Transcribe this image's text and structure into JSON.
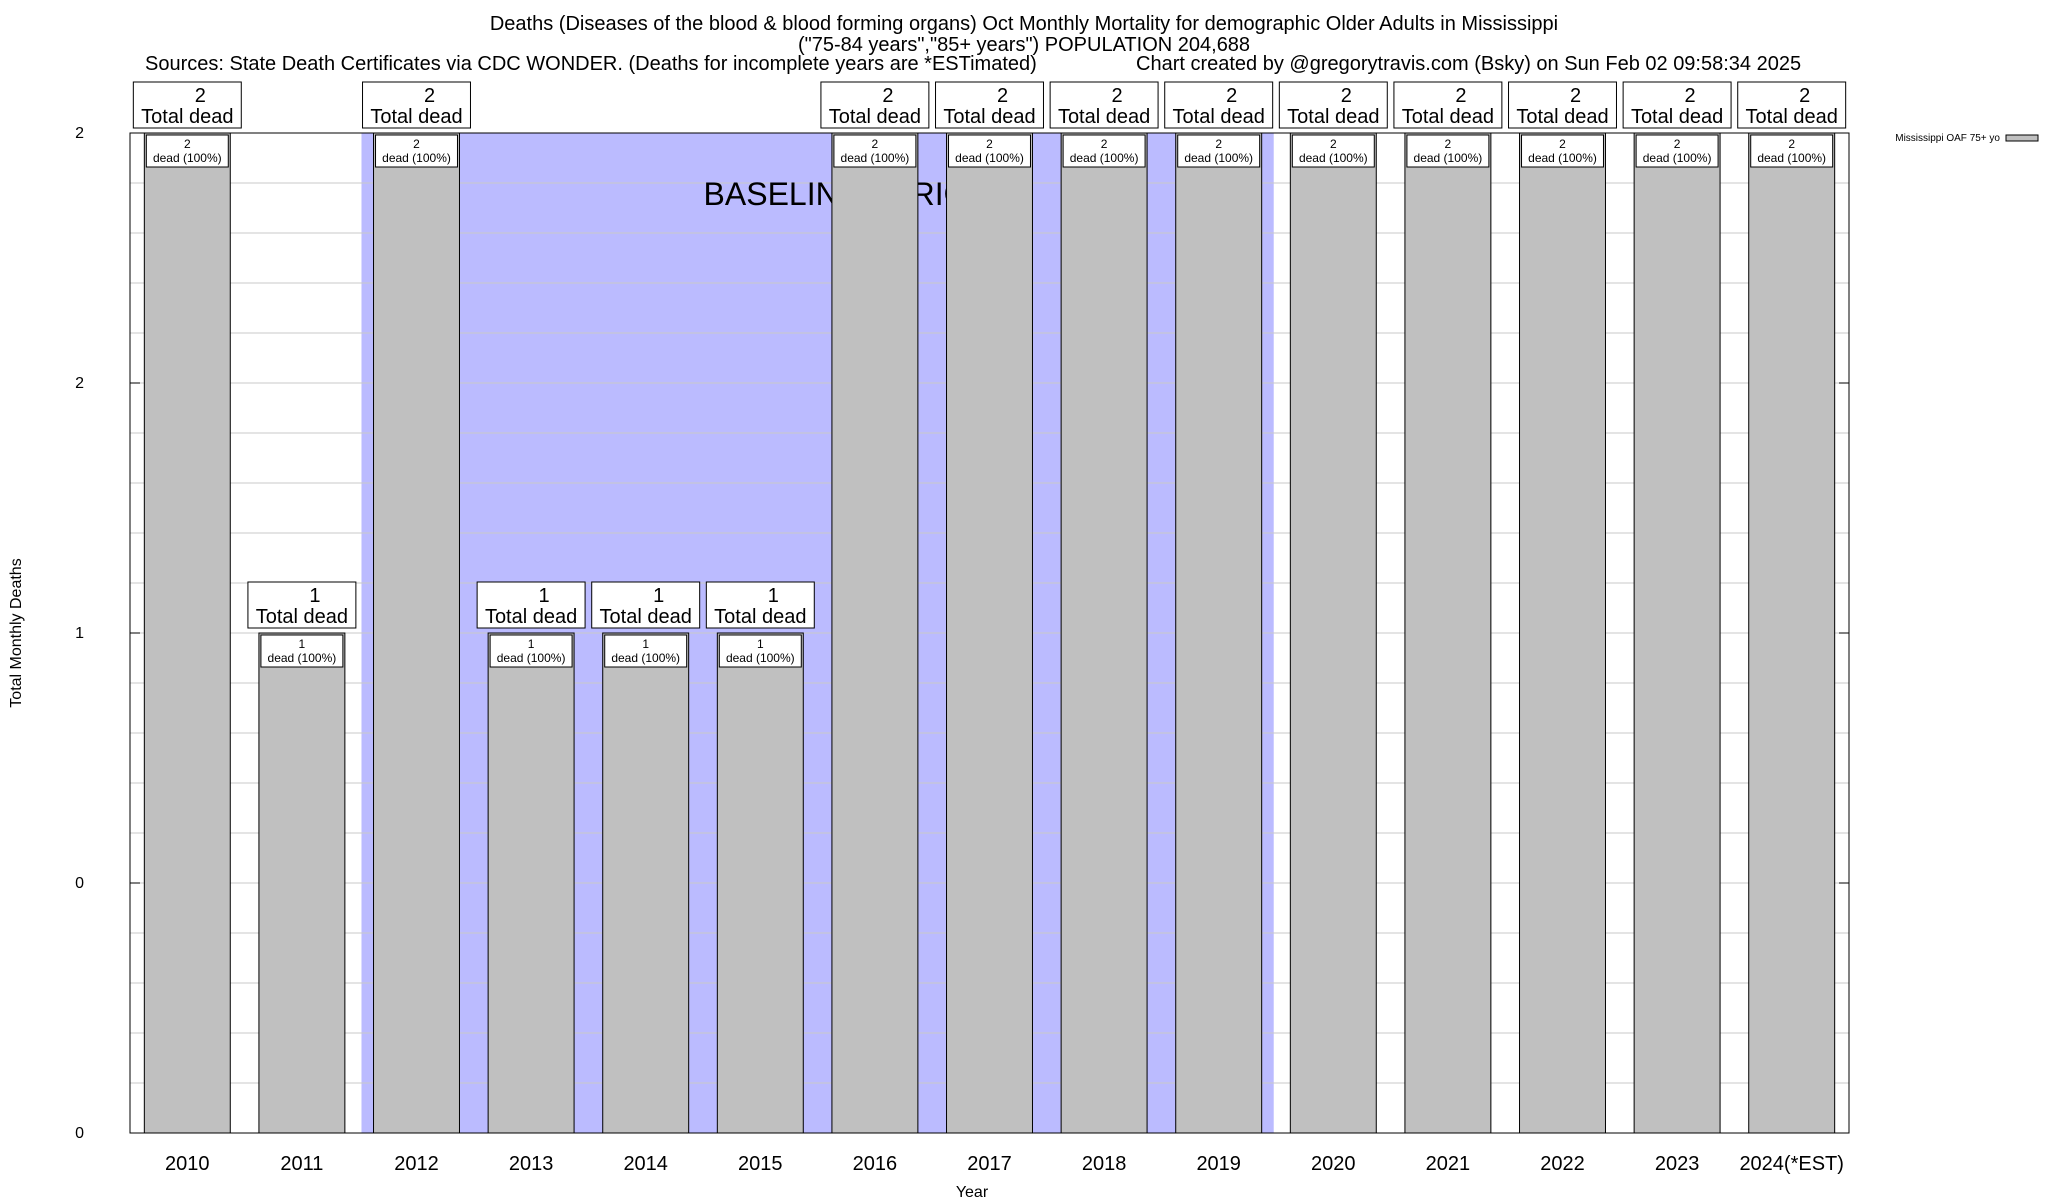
{
  "chart_data": {
    "type": "bar",
    "title": "Deaths (Diseases of the blood & blood forming organs) Oct Monthly Mortality for demographic Older Adults in Mississippi",
    "subtitle": "(\"75-84 years\",\"85+ years\") POPULATION 204,688",
    "sources": "Sources: State Death Certificates via CDC WONDER. (Deaths for incomplete years are *ESTimated)",
    "credit": "Chart created by @gregorytravis.com (Bsky) on Sun Feb 02 09:58:34 2025",
    "xlabel": "Year",
    "ylabel": "Total Monthly Deaths",
    "categories": [
      "2010",
      "2011",
      "2012",
      "2013",
      "2014",
      "2015",
      "2016",
      "2017",
      "2018",
      "2019",
      "2020",
      "2021",
      "2022",
      "2023",
      "2024(*EST)"
    ],
    "series": [
      {
        "name": "Mississippi OAF 75+ yo",
        "values": [
          2,
          1,
          2,
          1,
          1,
          1,
          2,
          2,
          2,
          2,
          2,
          2,
          2,
          2,
          2
        ],
        "color": "#c0c0c0"
      }
    ],
    "top_labels": [
      "2\nTotal dead",
      "1\nTotal dead",
      "2\nTotal dead",
      "1\nTotal dead",
      "1\nTotal dead",
      "1\nTotal dead",
      "2\nTotal dead",
      "2\nTotal dead",
      "2\nTotal dead",
      "2\nTotal dead",
      "2\nTotal dead",
      "2\nTotal dead",
      "2\nTotal dead",
      "2\nTotal dead",
      "2\nTotal dead"
    ],
    "inner_labels": [
      "2\ndead (100%)",
      "1\ndead (100%)",
      "2\ndead (100%)",
      "1\ndead (100%)",
      "1\ndead (100%)",
      "1\ndead (100%)",
      "2\ndead (100%)",
      "2\ndead (100%)",
      "2\ndead (100%)",
      "2\ndead (100%)",
      "2\ndead (100%)",
      "2\ndead (100%)",
      "2\ndead (100%)",
      "2\ndead (100%)",
      "2\ndead (100%)"
    ],
    "ylim": [
      0,
      2
    ],
    "ytick_labels": [
      "0",
      "0",
      "1",
      "2",
      "2"
    ],
    "baseline_period": {
      "label": "BASELINE PERIOD",
      "from": "2012",
      "to": "2019",
      "color": "#bbbbff"
    },
    "grid": true,
    "legend_position": "top-right"
  }
}
